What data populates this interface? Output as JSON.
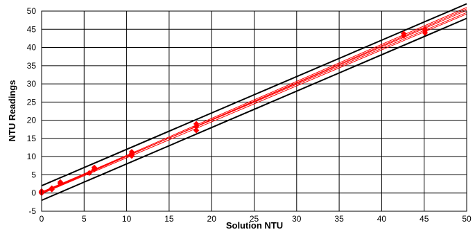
{
  "chart_data": {
    "type": "scatter",
    "xlabel": "Solution NTU",
    "ylabel": "NTU Readings",
    "xlim": [
      0,
      50
    ],
    "ylim": [
      -5,
      50
    ],
    "x_ticks": [
      "0",
      "5",
      "10",
      "15",
      "20",
      "25",
      "30",
      "35",
      "40",
      "45",
      "50"
    ],
    "y_ticks": [
      "-5",
      "0",
      "5",
      "10",
      "15",
      "20",
      "25",
      "30",
      "35",
      "40",
      "45",
      "50"
    ],
    "grid": true,
    "colors": {
      "points": "#ff0000",
      "fit_lines": "#ff0000",
      "bounds": "#000000",
      "grid": "#000000"
    },
    "points": [
      {
        "x": 0,
        "y": 0
      },
      {
        "x": 0,
        "y": 0.5
      },
      {
        "x": 0,
        "y": 0.2
      },
      {
        "x": 1.2,
        "y": 1.0
      },
      {
        "x": 1.2,
        "y": 1.3
      },
      {
        "x": 2.2,
        "y": 2.6
      },
      {
        "x": 2.2,
        "y": 3.0
      },
      {
        "x": 5.6,
        "y": 5.5
      },
      {
        "x": 6.2,
        "y": 6.5
      },
      {
        "x": 6.2,
        "y": 7.0
      },
      {
        "x": 10.6,
        "y": 10.2
      },
      {
        "x": 10.6,
        "y": 10.8
      },
      {
        "x": 10.6,
        "y": 11.3
      },
      {
        "x": 18.2,
        "y": 17.2
      },
      {
        "x": 18.2,
        "y": 18.2
      },
      {
        "x": 18.2,
        "y": 19.0
      },
      {
        "x": 42.6,
        "y": 43.2
      },
      {
        "x": 42.6,
        "y": 43.8
      },
      {
        "x": 45.1,
        "y": 44.0
      },
      {
        "x": 45.1,
        "y": 44.6
      },
      {
        "x": 45.1,
        "y": 45.0
      }
    ],
    "fit_lines": [
      {
        "x": [
          0,
          50
        ],
        "y": [
          -0.2,
          49.2
        ]
      },
      {
        "x": [
          0,
          50
        ],
        "y": [
          0.1,
          50.2
        ]
      },
      {
        "x": [
          0,
          50
        ],
        "y": [
          0.3,
          49.6
        ]
      },
      {
        "x": [
          0,
          50
        ],
        "y": [
          -0.1,
          50.6
        ]
      },
      {
        "x": [
          0,
          50
        ],
        "y": [
          0.2,
          51.0
        ]
      }
    ],
    "bound_lines": [
      {
        "x": [
          0,
          50
        ],
        "y": [
          2,
          52
        ]
      },
      {
        "x": [
          0,
          50
        ],
        "y": [
          -2,
          48
        ]
      }
    ]
  }
}
